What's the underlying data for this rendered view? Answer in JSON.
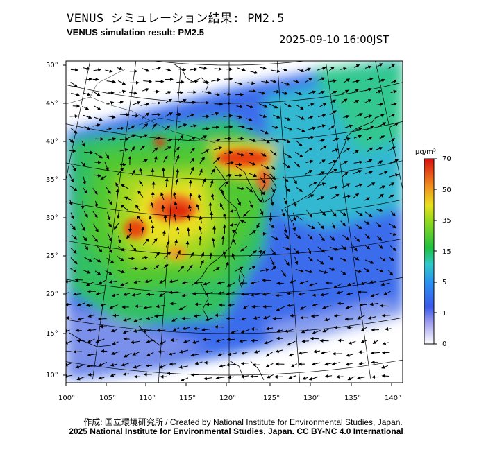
{
  "header": {
    "title_jp": "VENUS シミュレーション結果: PM2.5",
    "title_en": "VENUS simulation result: PM2.5",
    "timestamp": "2025-09-10 16:00JST"
  },
  "colorbar": {
    "unit": "μg/m³",
    "ticks": [
      "0",
      "1",
      "5",
      "15",
      "35",
      "50",
      "70"
    ],
    "colors": [
      "#ffffff",
      "#6a6ae8",
      "#2a6cf0",
      "#30c8c0",
      "#20c020",
      "#e8e020",
      "#f09020",
      "#e02010"
    ]
  },
  "map": {
    "lat_labels": [
      "50°",
      "45°",
      "40°",
      "35°",
      "30°",
      "25°",
      "20°",
      "15°",
      "10°"
    ],
    "lon_labels": [
      "100°",
      "105°",
      "110°",
      "115°",
      "120°",
      "125°",
      "130°",
      "135°",
      "140°"
    ],
    "legend_scale": "0 1 5 15 35 50 70"
  },
  "footer": {
    "credit_jp_en": "作成: 国立環境研究所 / Created by National Institute for Environmental Studies, Japan.",
    "copyright": "2025 National Institute for Environmental Studies, Japan. CC BY-NC 4.0 International"
  }
}
